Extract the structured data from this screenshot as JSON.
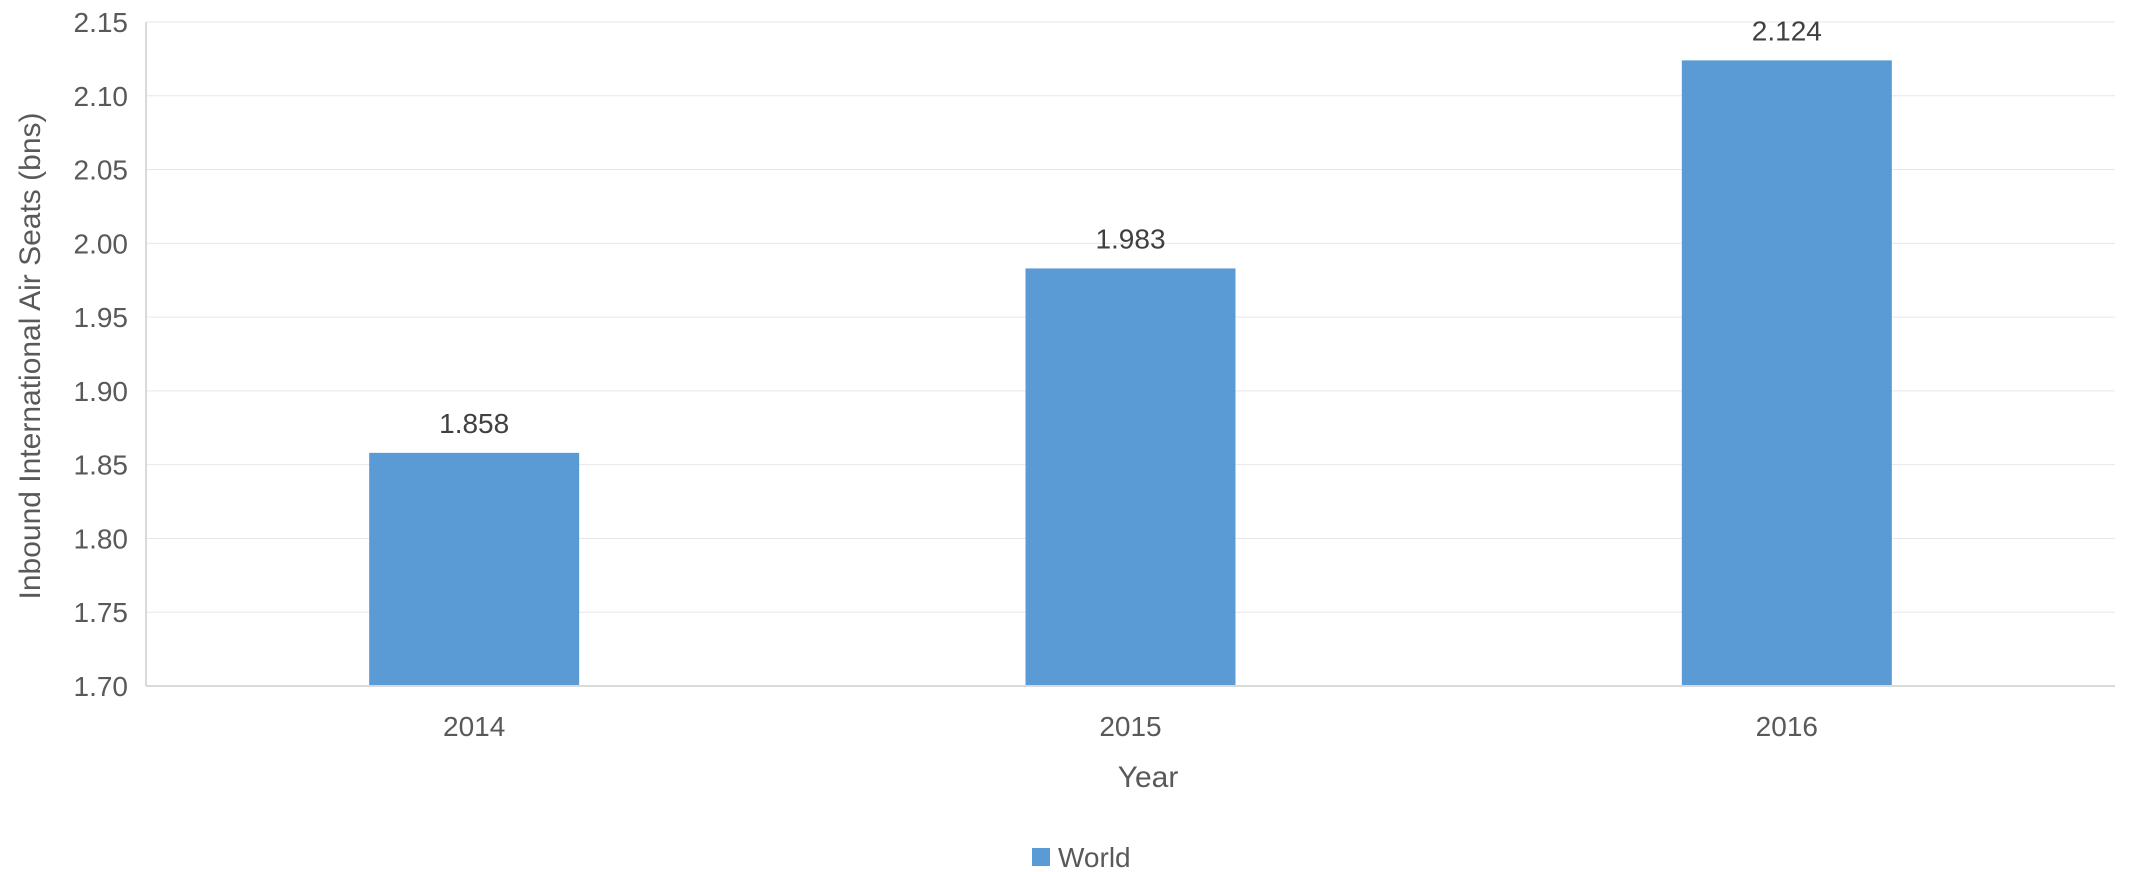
{
  "chart_data": {
    "type": "bar",
    "categories": [
      "2014",
      "2015",
      "2016"
    ],
    "series": [
      {
        "name": "World",
        "values": [
          1.858,
          1.983,
          2.124
        ],
        "labels": [
          "1.858",
          "1.983",
          "2.124"
        ],
        "color": "#5B9BD5"
      }
    ],
    "title": "",
    "xlabel": "Year",
    "ylabel": "Inbound International Air Seats (bns)",
    "ylim": [
      1.7,
      2.15
    ],
    "yticks": [
      1.7,
      1.75,
      1.8,
      1.85,
      1.9,
      1.95,
      2.0,
      2.05,
      2.1,
      2.15
    ],
    "ytick_labels": [
      "1.70",
      "1.75",
      "1.80",
      "1.85",
      "1.90",
      "1.95",
      "2.00",
      "2.05",
      "2.10",
      "2.15"
    ],
    "grid": true,
    "legend": {
      "position": "bottom",
      "entries": [
        "World"
      ]
    }
  },
  "colors": {
    "bar": "#5B9BD5",
    "grid": "#E7E7E7",
    "axis": "#D9D9D9"
  }
}
